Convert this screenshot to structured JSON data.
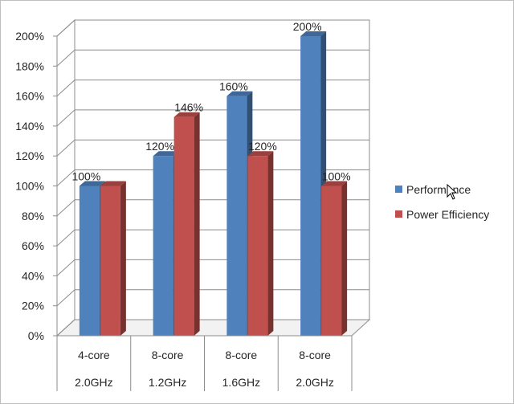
{
  "chart_data": {
    "type": "bar",
    "categories": [
      [
        "4-core",
        "2.0GHz"
      ],
      [
        "8-core",
        "1.2GHz"
      ],
      [
        "8-core",
        "1.6GHz"
      ],
      [
        "8-core",
        "2.0GHz"
      ]
    ],
    "series": [
      {
        "name": "Performance",
        "values": [
          100,
          120,
          160,
          200
        ],
        "data_labels": [
          "100%",
          "120%",
          "160%",
          "200%"
        ],
        "color": "#4f81bd"
      },
      {
        "name": "Power Efficiency",
        "values": [
          100,
          146,
          120,
          100
        ],
        "data_labels": [
          "",
          "146%",
          "120%",
          "100%"
        ],
        "color": "#c0504d"
      }
    ],
    "yticks": [
      "0%",
      "20%",
      "40%",
      "60%",
      "80%",
      "100%",
      "120%",
      "140%",
      "160%",
      "180%",
      "200%"
    ],
    "ylim": [
      0,
      200
    ],
    "grid": true,
    "legend": "right",
    "title": "",
    "xlabel": "",
    "ylabel": ""
  }
}
